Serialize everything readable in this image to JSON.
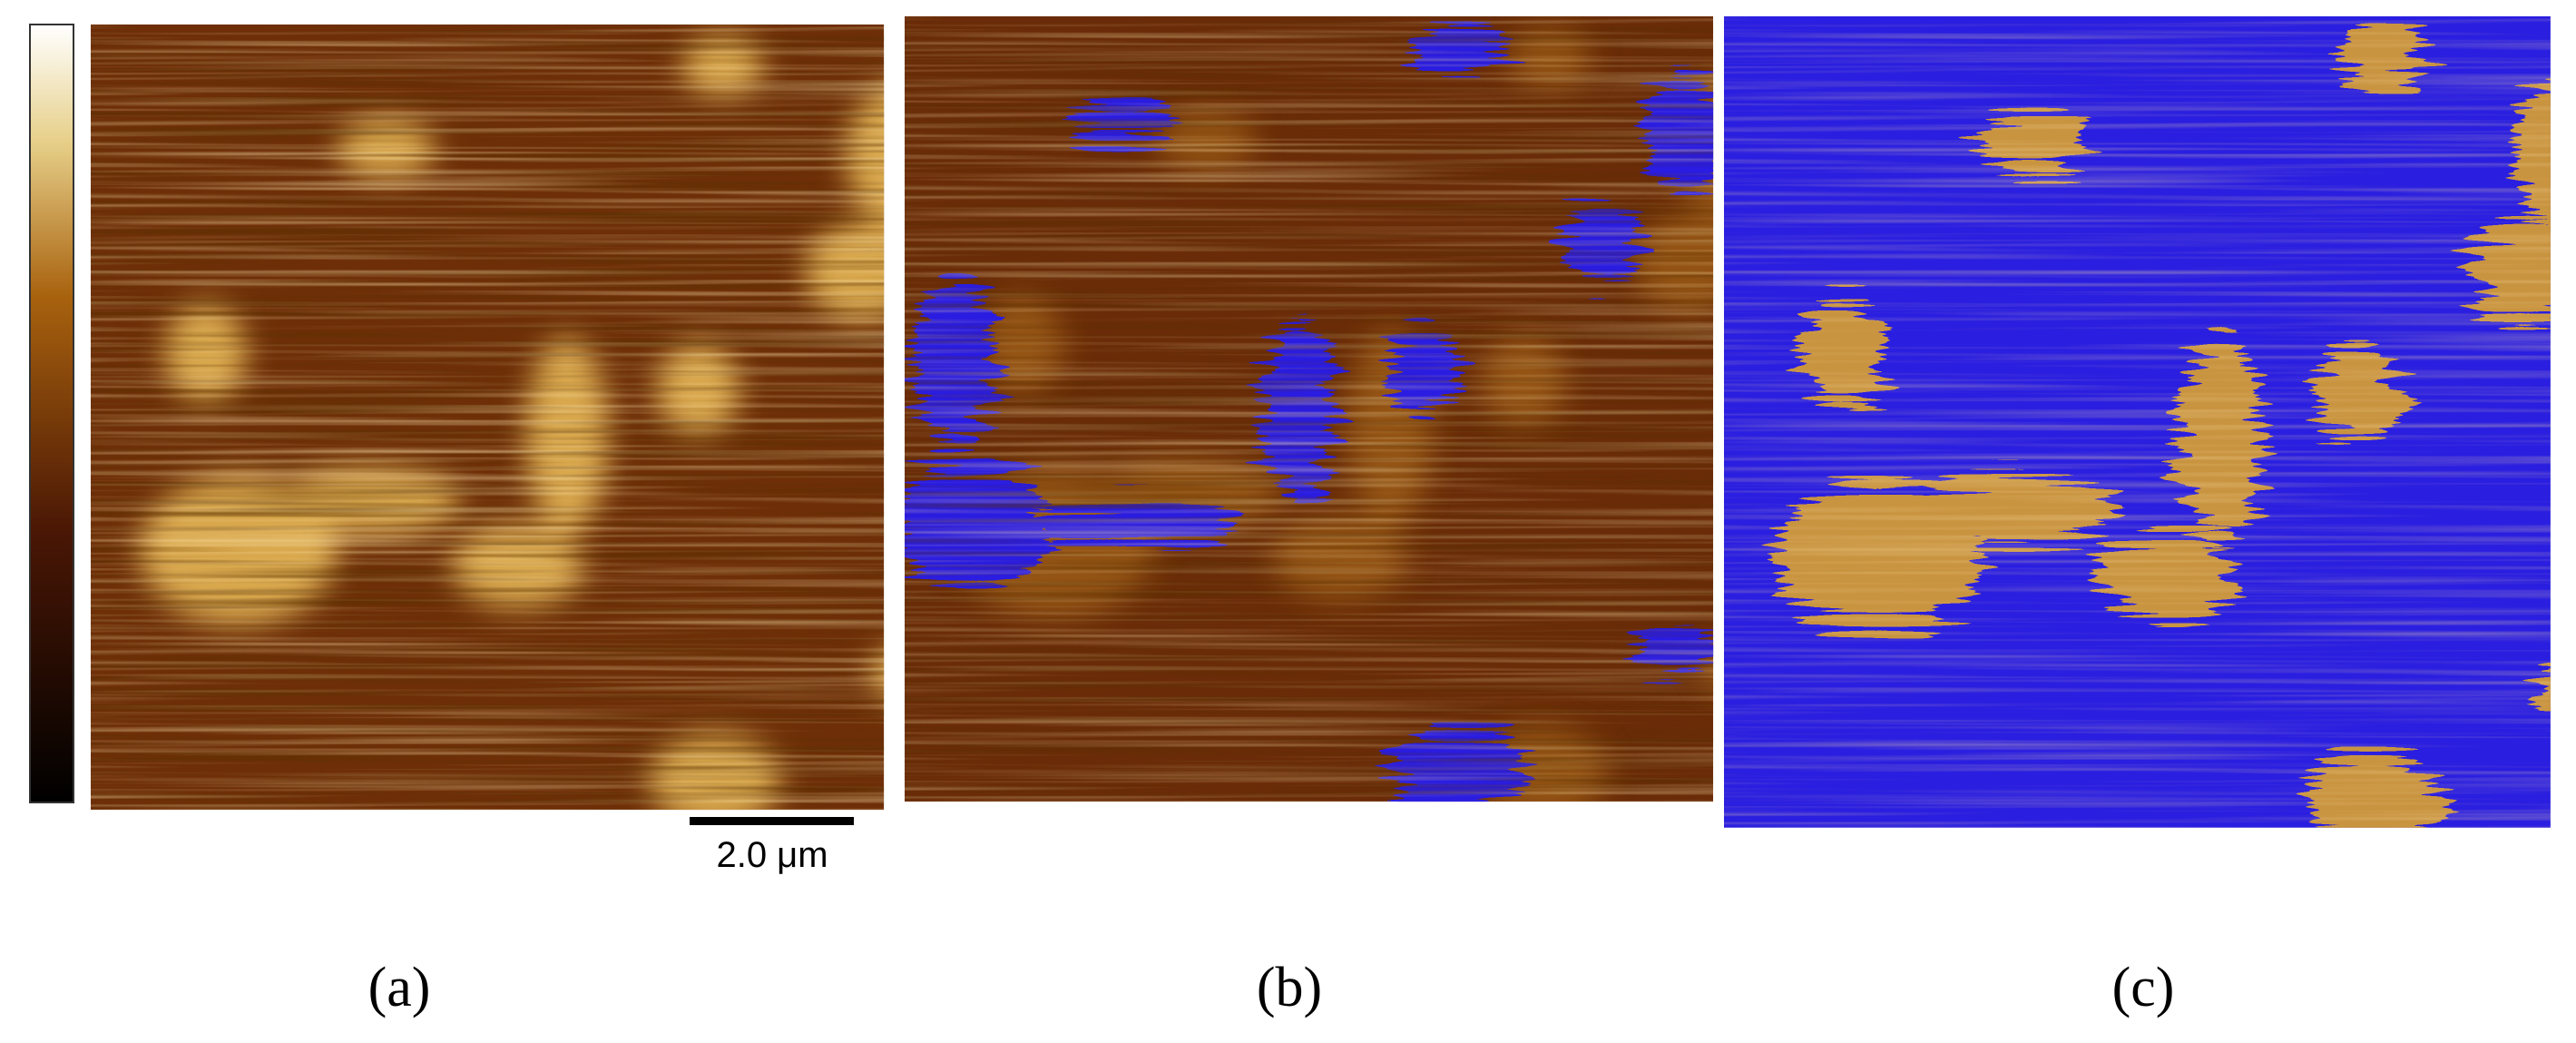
{
  "panels": [
    {
      "label": "(a)"
    },
    {
      "label": "(b)"
    },
    {
      "label": "(c)"
    }
  ],
  "scale_bar": {
    "label": "2.0 μm"
  }
}
